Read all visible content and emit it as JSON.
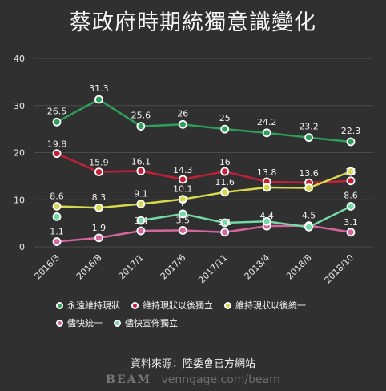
{
  "title": "蔡政府時期統獨意識變化",
  "source": "資料來源：陸委會官方網站",
  "brand": {
    "logo": "BEAM",
    "url": "venngage.com/beam"
  },
  "chart_data": {
    "type": "line",
    "title": "蔡政府時期統獨意識變化",
    "categories": [
      "2016/3",
      "2016/8",
      "2017/1",
      "2017/6",
      "2017/11",
      "2018/4",
      "2018/8",
      "2018/10"
    ],
    "ylim": [
      0,
      40
    ],
    "yticks": [
      0,
      10,
      20,
      30,
      40
    ],
    "grid": true,
    "legend_position": "bottom",
    "series": [
      {
        "name": "永遠維持現狀",
        "color": "#2e9e5b",
        "values": [
          26.5,
          31.3,
          25.6,
          26,
          25,
          24.2,
          23.2,
          22.3
        ]
      },
      {
        "name": "維持現狀以後獨立",
        "color": "#c41f3a",
        "values": [
          19.8,
          15.9,
          16.1,
          14.3,
          16,
          13.8,
          13.6,
          14
        ]
      },
      {
        "name": "維持現狀以後統一",
        "color": "#d6d84f",
        "values": [
          8.6,
          8.3,
          9.1,
          10.1,
          11.6,
          12.6,
          12.5,
          16
        ]
      },
      {
        "name": "儘快統一",
        "color": "#d4669c",
        "values": [
          1.1,
          1.9,
          3.4,
          3.5,
          3.1,
          4.4,
          4.5,
          3.1
        ]
      },
      {
        "name": "儘快宣佈獨立",
        "color": "#73d9a8",
        "values": [
          6.4,
          null,
          5.6,
          7,
          5.1,
          5.4,
          4.2,
          8.6
        ]
      }
    ],
    "data_labels": [
      {
        "series": 0,
        "index": 0,
        "text": "26.5"
      },
      {
        "series": 0,
        "index": 1,
        "text": "31.3"
      },
      {
        "series": 0,
        "index": 2,
        "text": "25.6"
      },
      {
        "series": 0,
        "index": 3,
        "text": "26"
      },
      {
        "series": 0,
        "index": 4,
        "text": "25"
      },
      {
        "series": 0,
        "index": 5,
        "text": "24.2"
      },
      {
        "series": 0,
        "index": 6,
        "text": "23.2"
      },
      {
        "series": 0,
        "index": 7,
        "text": "22.3"
      },
      {
        "series": 1,
        "index": 0,
        "text": "19.8"
      },
      {
        "series": 1,
        "index": 1,
        "text": "15.9"
      },
      {
        "series": 1,
        "index": 2,
        "text": "16.1"
      },
      {
        "series": 1,
        "index": 3,
        "text": "14.3"
      },
      {
        "series": 1,
        "index": 4,
        "text": "16"
      },
      {
        "series": 1,
        "index": 5,
        "text": "13.8"
      },
      {
        "series": 1,
        "index": 6,
        "text": "13.6"
      },
      {
        "series": 1,
        "index": 7,
        "text": "14"
      },
      {
        "series": 2,
        "index": 0,
        "text": "8.6"
      },
      {
        "series": 2,
        "index": 1,
        "text": "8.3"
      },
      {
        "series": 2,
        "index": 2,
        "text": "9.1"
      },
      {
        "series": 2,
        "index": 3,
        "text": "10.1"
      },
      {
        "series": 2,
        "index": 4,
        "text": "11.6"
      },
      {
        "series": 3,
        "index": 0,
        "text": "1.1"
      },
      {
        "series": 3,
        "index": 1,
        "text": "1.9"
      },
      {
        "series": 3,
        "index": 2,
        "text": "3.4"
      },
      {
        "series": 3,
        "index": 3,
        "text": "3.5"
      },
      {
        "series": 3,
        "index": 4,
        "text": "3.1"
      },
      {
        "series": 3,
        "index": 5,
        "text": "4.4"
      },
      {
        "series": 3,
        "index": 6,
        "text": "4.5"
      },
      {
        "series": 3,
        "index": 7,
        "text": "3.1"
      },
      {
        "series": 4,
        "index": 3,
        "text": "7"
      },
      {
        "series": 4,
        "index": 7,
        "text": "8.6"
      }
    ]
  }
}
